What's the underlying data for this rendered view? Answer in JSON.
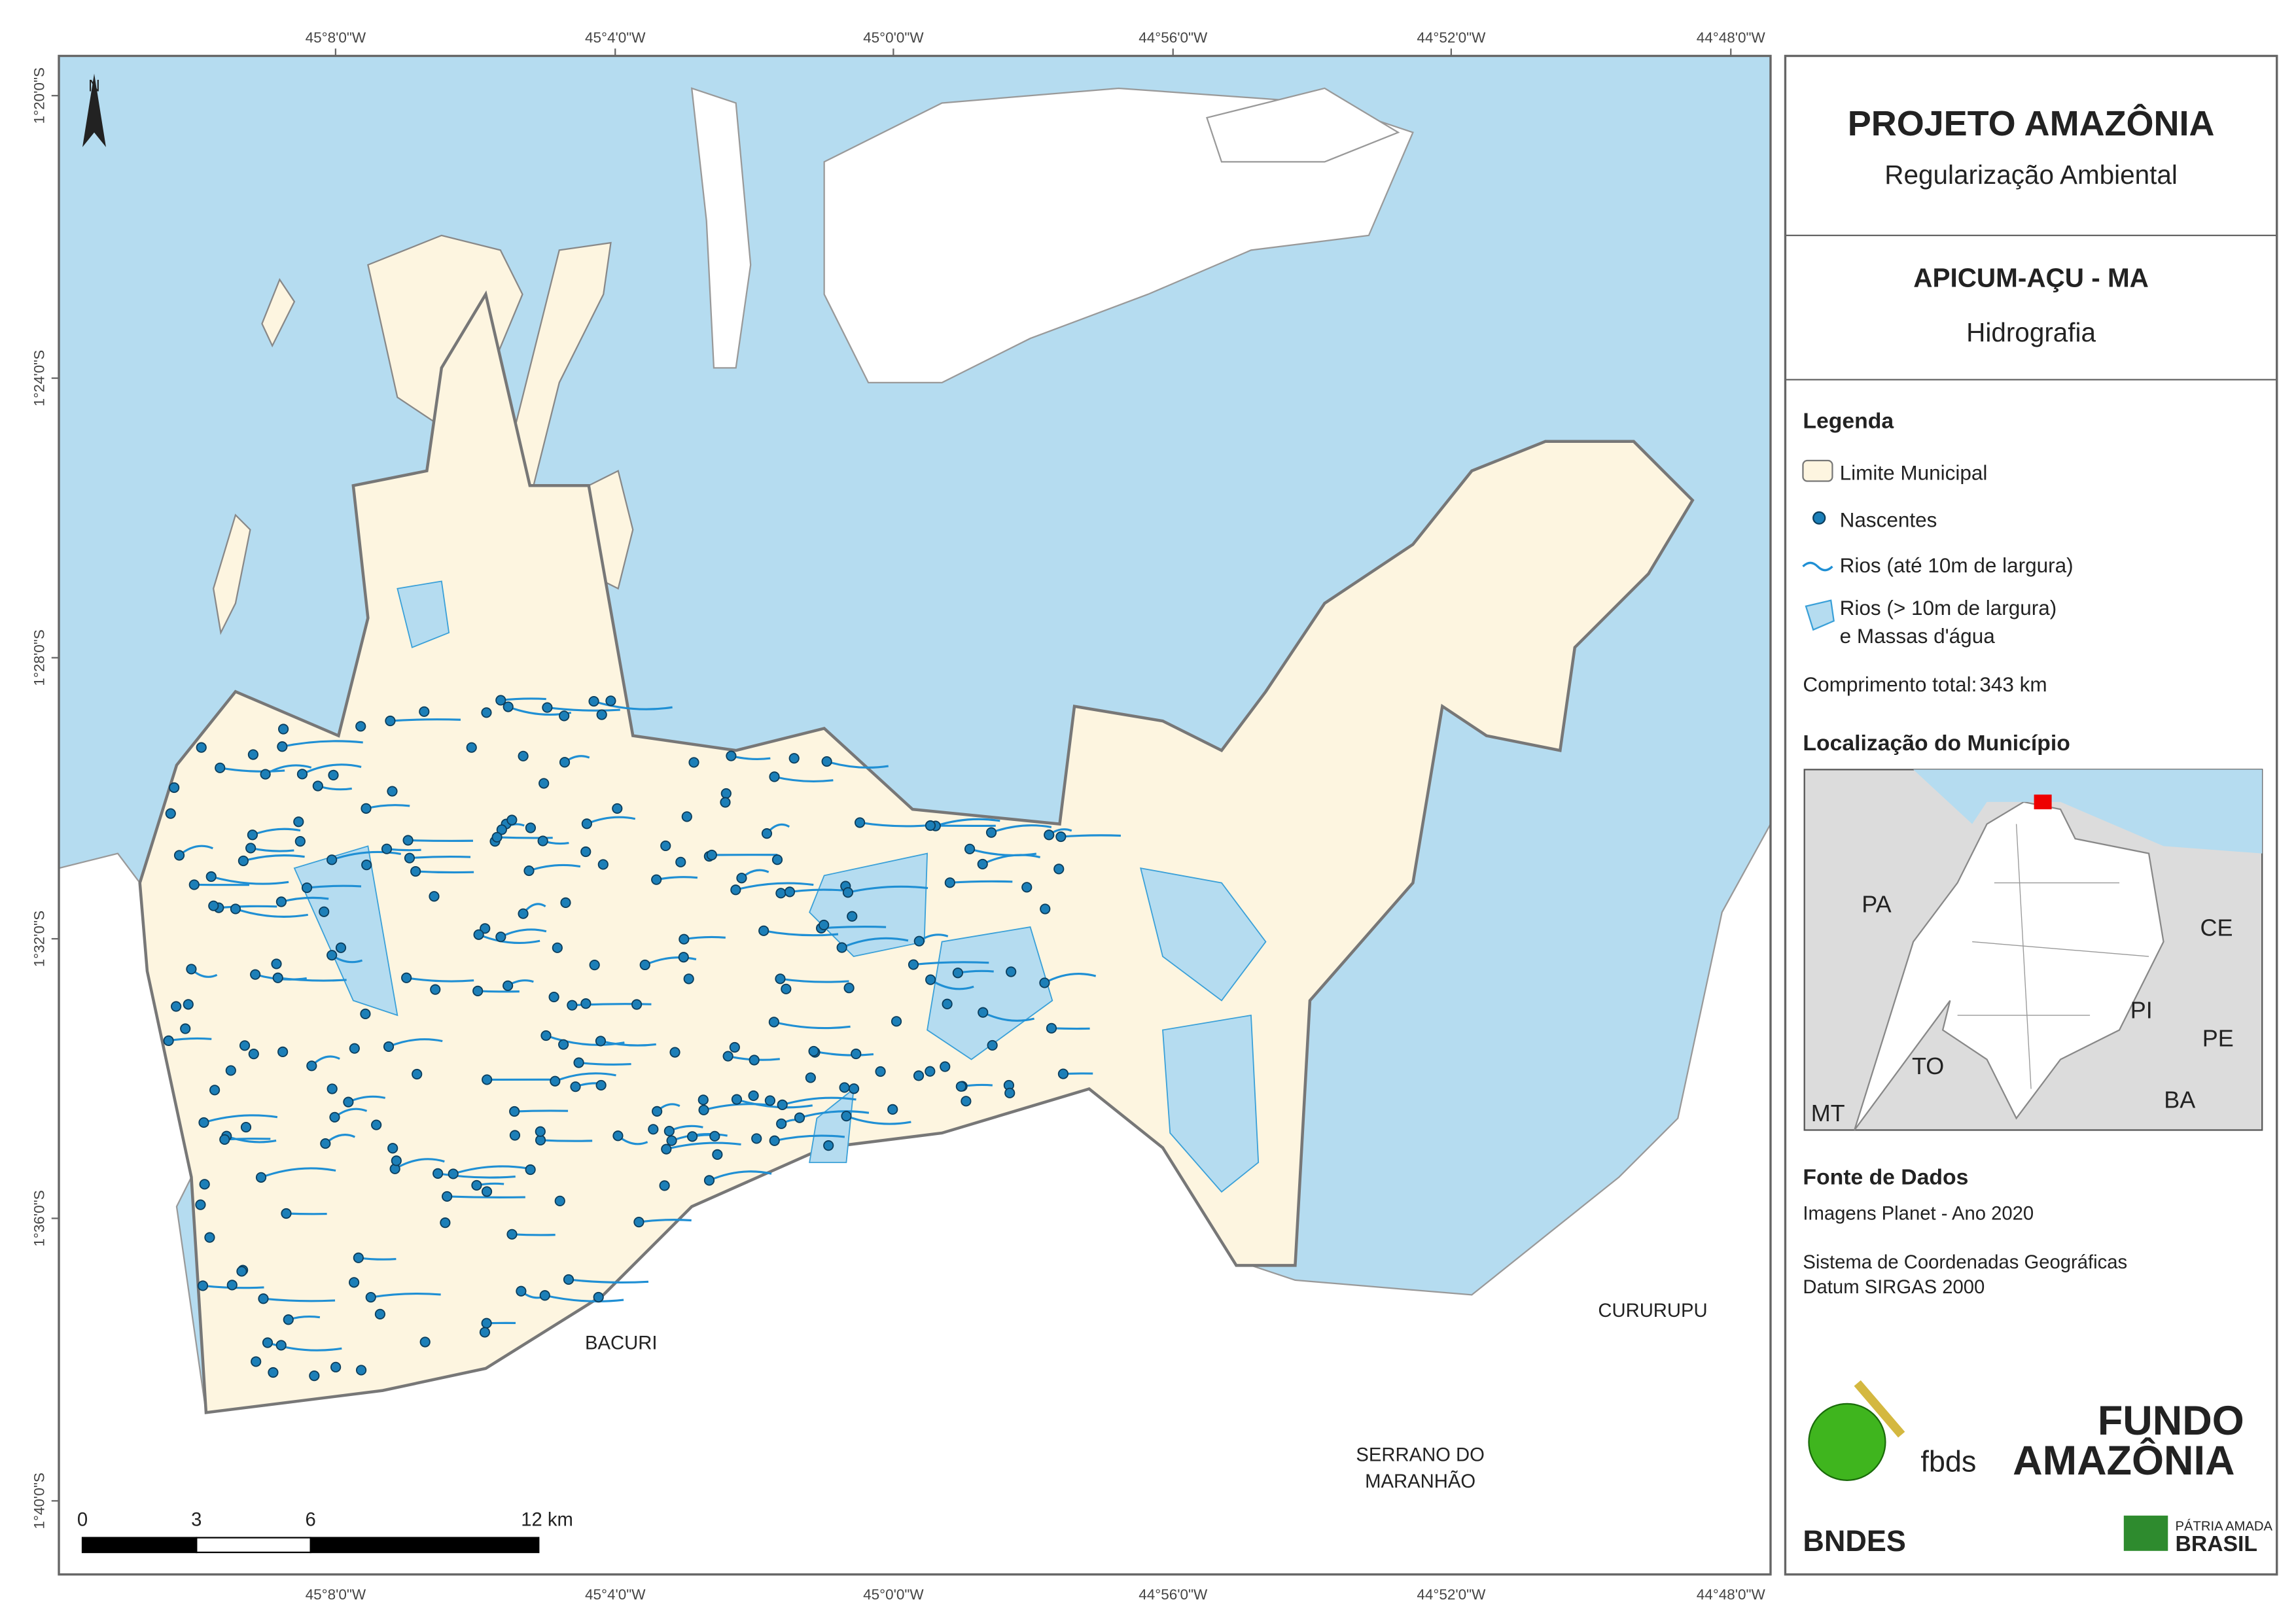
{
  "map": {
    "north": "N",
    "lon_labels": [
      "45°8'0\"W",
      "45°4'0\"W",
      "45°0'0\"W",
      "44°56'0\"W",
      "44°52'0\"W",
      "44°48'0\"W"
    ],
    "lat_labels": [
      "1°20'0\"S",
      "1°24'0\"S",
      "1°28'0\"S",
      "1°32'0\"S",
      "1°36'0\"S",
      "1°40'0\"S"
    ],
    "places": [
      "BACURI",
      "CURURUPU",
      "SERRANO DO",
      "MARANHÃO"
    ],
    "scale": {
      "ticks": [
        0,
        3,
        6,
        {
          "value": 12,
          "label": "12 km"
        }
      ]
    }
  },
  "header": {
    "title": "PROJETO AMAZÔNIA",
    "subtitle": "Regularização Ambiental"
  },
  "theme": {
    "municipality": "APICUM-AÇU - MA",
    "topic": "Hidrografia"
  },
  "legend": {
    "title": "Legenda",
    "items": [
      "Limite Municipal",
      "Nascentes",
      "Rios (até 10m de largura)",
      "Rios (> 10m de largura)",
      "e Massas d'água"
    ],
    "total_label": "Comprimento total:",
    "total": "343 km"
  },
  "location": {
    "title": "Localização do Município",
    "states": [
      "PA",
      "CE",
      "PI",
      "TO",
      "PE",
      "BA",
      "MT"
    ]
  },
  "sources": {
    "title": "Fonte de Dados",
    "lines": [
      "Imagens Planet - Ano 2020",
      "Sistema de Coordenadas Geográficas",
      "Datum SIRGAS 2000"
    ]
  },
  "logos": [
    "fbds",
    "FUNDO",
    "AMAZÔNIA",
    "BNDES",
    "PÁTRIA AMADA",
    "BRASIL"
  ]
}
